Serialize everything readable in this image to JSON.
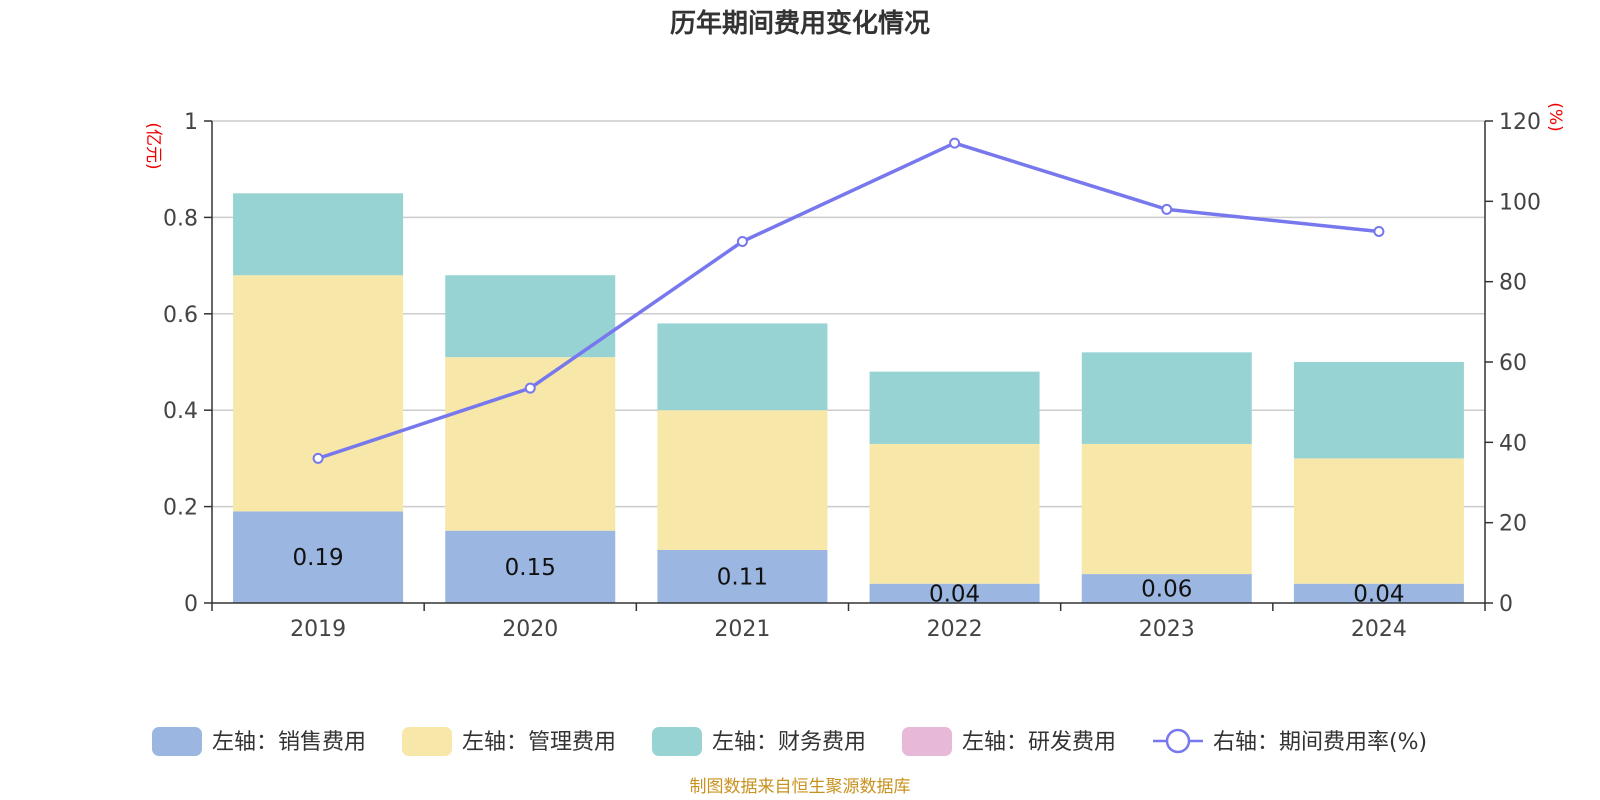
{
  "chart_data": {
    "type": "bar",
    "title": "历年期间费用变化情况",
    "categories": [
      "2019",
      "2020",
      "2021",
      "2022",
      "2023",
      "2024"
    ],
    "y_left": {
      "unit": "(亿元)",
      "ylim": [
        0,
        1
      ],
      "ticks": [
        "0",
        "0.2",
        "0.4",
        "0.6",
        "0.8",
        "1"
      ],
      "tick_values": [
        0,
        0.2,
        0.4,
        0.6,
        0.8,
        1
      ]
    },
    "y_right": {
      "unit": "(%)",
      "ylim": [
        0,
        120
      ],
      "ticks": [
        "0",
        "20",
        "40",
        "60",
        "80",
        "100",
        "120"
      ],
      "tick_values": [
        0,
        20,
        40,
        60,
        80,
        100,
        120
      ]
    },
    "grid": true,
    "legend_position": "bottom",
    "series": [
      {
        "name": "左轴：销售费用",
        "type": "bar",
        "axis": "left",
        "color": "#9bb7e1",
        "values": [
          0.19,
          0.15,
          0.11,
          0.04,
          0.06,
          0.04
        ],
        "labels": [
          "0.19",
          "0.15",
          "0.11",
          "0.04",
          "0.06",
          "0.04"
        ]
      },
      {
        "name": "左轴：管理费用",
        "type": "bar",
        "axis": "left",
        "color": "#f7e7a9",
        "values": [
          0.49,
          0.36,
          0.29,
          0.29,
          0.27,
          0.26
        ]
      },
      {
        "name": "左轴：财务费用",
        "type": "bar",
        "axis": "left",
        "color": "#97d3d3",
        "values": [
          0.17,
          0.17,
          0.18,
          0.15,
          0.19,
          0.2
        ]
      },
      {
        "name": "左轴：研发费用",
        "type": "bar",
        "axis": "left",
        "color": "#e8b8d8",
        "values": [
          0,
          0,
          0,
          0,
          0,
          0
        ]
      },
      {
        "name": "右轴：期间费用率(%)",
        "type": "line",
        "axis": "right",
        "color": "#7777ee",
        "values": [
          36,
          53.5,
          90,
          114.5,
          98,
          92.5
        ]
      }
    ],
    "source_note": "制图数据来自恒生聚源数据库"
  }
}
